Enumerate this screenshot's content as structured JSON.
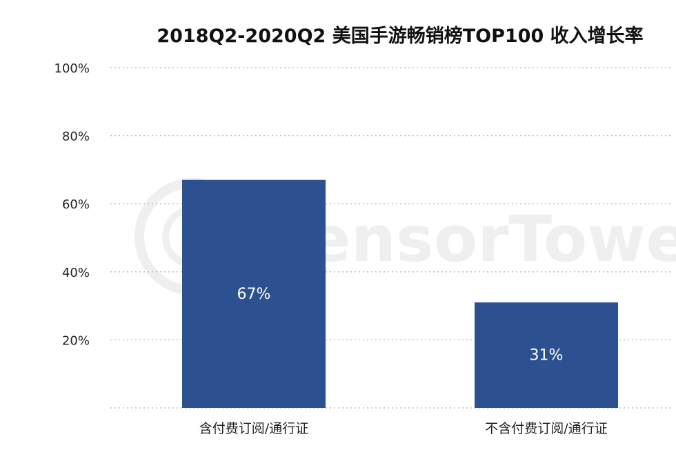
{
  "chart_data": {
    "type": "bar",
    "title": "2018Q2-2020Q2 美国手游畅销榜TOP100 收入增长率",
    "xlabel": "",
    "ylabel": "",
    "categories": [
      "含付费订阅/通行证",
      "不含付费订阅/通行证"
    ],
    "values": [
      67,
      31
    ],
    "value_labels": [
      "67%",
      "31%"
    ],
    "ylim": [
      0,
      100
    ],
    "yticks": [
      20,
      40,
      60,
      80,
      100
    ],
    "ytick_labels": [
      "20%",
      "40%",
      "60%",
      "80%",
      "100%"
    ],
    "grid": "horizontal dotted",
    "legend": "none",
    "bar_color": "#2d5190",
    "watermark": "SensorTower"
  }
}
